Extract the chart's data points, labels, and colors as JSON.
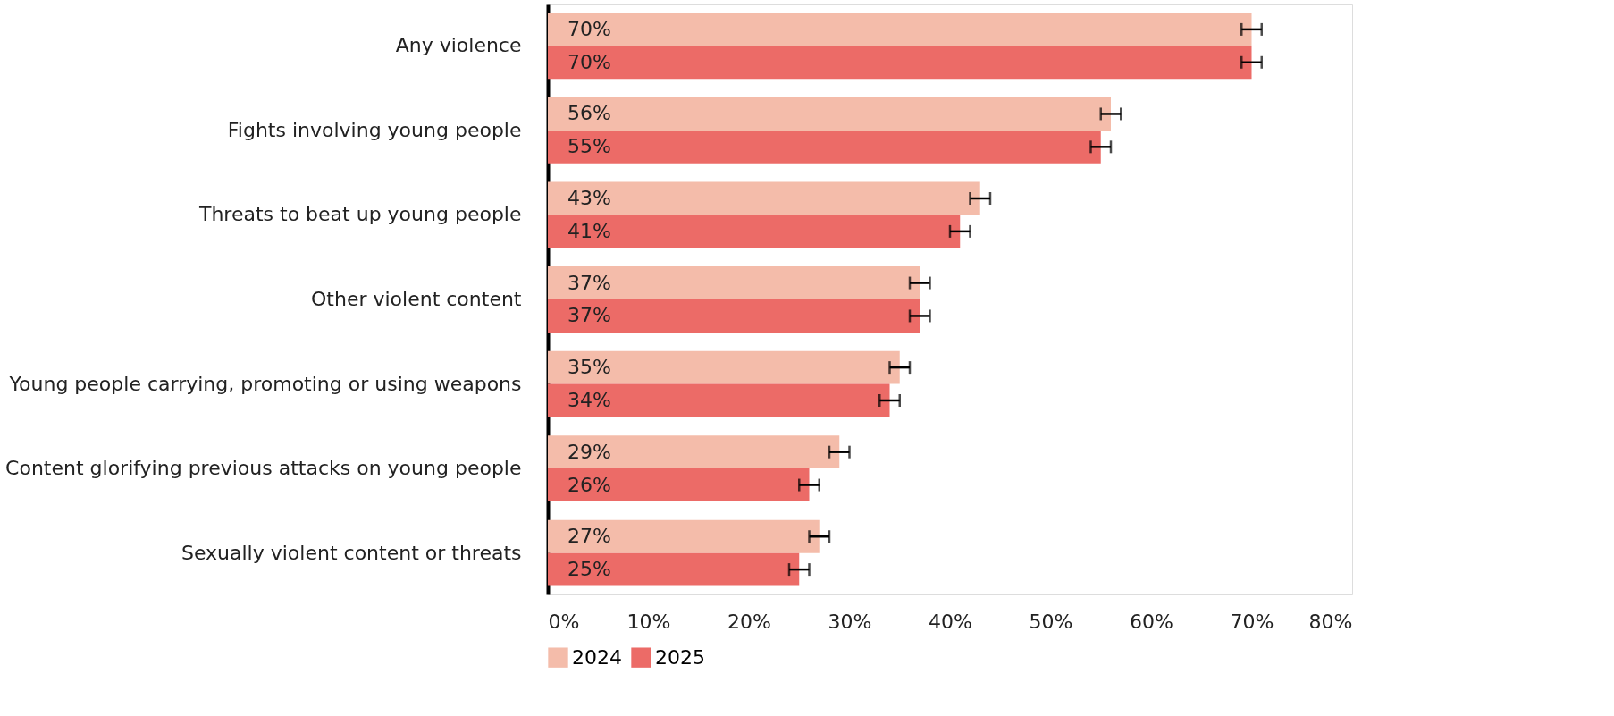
{
  "chart_data": {
    "type": "bar",
    "orientation": "horizontal",
    "categories": [
      "Any violence",
      "Fights involving young people",
      "Threats to beat up young people",
      "Other violent content",
      "Young people carrying, promoting or using weapons",
      "Content glorifying previous attacks on young people",
      "Sexually violent content or threats"
    ],
    "series": [
      {
        "name": "2024",
        "color": "#f4bcaa",
        "values": [
          70,
          56,
          43,
          37,
          35,
          29,
          27
        ],
        "errors": [
          1,
          1,
          1,
          1,
          1,
          1,
          1
        ],
        "value_labels": [
          "70%",
          "56%",
          "43%",
          "37%",
          "35%",
          "29%",
          "27%"
        ]
      },
      {
        "name": "2025",
        "color": "#ec6b67",
        "values": [
          70,
          55,
          41,
          37,
          34,
          26,
          25
        ],
        "errors": [
          1,
          1,
          1,
          1,
          1,
          1,
          1
        ],
        "value_labels": [
          "70%",
          "55%",
          "41%",
          "37%",
          "34%",
          "26%",
          "25%"
        ]
      }
    ],
    "xlim": [
      0,
      80
    ],
    "xticks": [
      {
        "value": 0,
        "label": "0%"
      },
      {
        "value": 10,
        "label": "10%"
      },
      {
        "value": 20,
        "label": "20%"
      },
      {
        "value": 30,
        "label": "30%"
      },
      {
        "value": 40,
        "label": "40%"
      },
      {
        "value": 50,
        "label": "50%"
      },
      {
        "value": 60,
        "label": "60%"
      },
      {
        "value": 70,
        "label": "70%"
      },
      {
        "value": 80,
        "label": "80%"
      }
    ],
    "grid": false,
    "legend": "bottom"
  }
}
